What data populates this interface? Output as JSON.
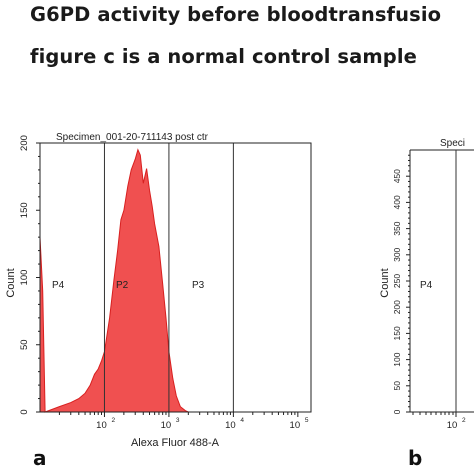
{
  "title": {
    "line1": "G6PD activity before bloodtransfusio",
    "line2": "figure c is a normal control sample"
  },
  "panels": [
    {
      "letter": "a"
    },
    {
      "letter": "b"
    }
  ],
  "chart_data": [
    {
      "type": "area",
      "panel": "a",
      "title": "Specimen_001-20-711143 post ctr",
      "xlabel": "Alexa Fluor 488-A",
      "ylabel": "Count",
      "x_scale": "log",
      "xlim": [
        10,
        160000
      ],
      "ylim": [
        0,
        200
      ],
      "x_ticks": [
        {
          "value": 100,
          "base": "10",
          "exp": "2"
        },
        {
          "value": 1000,
          "base": "10",
          "exp": "3"
        },
        {
          "value": 10000,
          "base": "10",
          "exp": "4"
        },
        {
          "value": 100000,
          "base": "10",
          "exp": "5"
        }
      ],
      "y_ticks": [
        "0",
        "50",
        "100",
        "150",
        "200"
      ],
      "gates": [
        {
          "name": "P4",
          "range": [
            10,
            100
          ]
        },
        {
          "name": "P2",
          "range": [
            100,
            1000
          ]
        },
        {
          "name": "P3",
          "range": [
            1000,
            10000
          ]
        }
      ],
      "fill_color": "#f05050",
      "series": [
        {
          "x": [
            10,
            11,
            12,
            20,
            30,
            40,
            50,
            60,
            70,
            80,
            90,
            100,
            120,
            140,
            160,
            180,
            200,
            230,
            260,
            300,
            330,
            360,
            400,
            450,
            500,
            550,
            600,
            700,
            800,
            900,
            1000,
            1150,
            1300,
            1500,
            1800,
            2000
          ],
          "values": [
            130,
            90,
            0,
            4,
            7,
            10,
            14,
            20,
            28,
            32,
            38,
            45,
            70,
            95,
            120,
            140,
            150,
            165,
            180,
            185,
            195,
            188,
            170,
            178,
            165,
            150,
            140,
            120,
            95,
            70,
            45,
            25,
            12,
            4,
            1,
            0
          ]
        }
      ]
    },
    {
      "type": "area",
      "panel": "b",
      "title": "Speci",
      "xlabel": "",
      "ylabel": "Count",
      "ylim": [
        0,
        500
      ],
      "x_ticks": [
        {
          "value": 100,
          "base": "10",
          "exp": "2"
        }
      ],
      "y_ticks": [
        "0",
        "50",
        "100",
        "150",
        "200",
        "250",
        "300",
        "350",
        "400",
        "450"
      ],
      "gates": [
        {
          "name": "P4"
        }
      ],
      "series": []
    }
  ]
}
